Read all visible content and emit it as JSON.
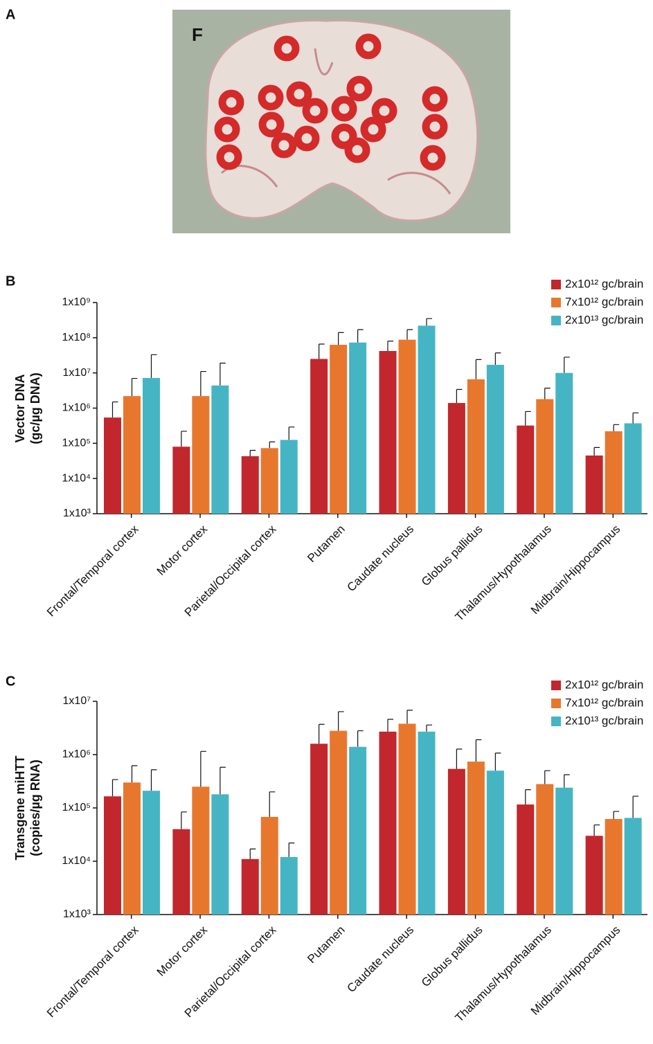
{
  "panel_labels": [
    "A",
    "B",
    "C"
  ],
  "photo_label": "F",
  "chart_data": [
    {
      "type": "bar",
      "log_scale": true,
      "ylabel": [
        "Vector DNA",
        "(gc/µg DNA)"
      ],
      "categories": [
        "Frontal/Temporal cortex",
        "Motor cortex",
        "Parietal/Occipital cortex",
        "Putamen",
        "Caudate nucleus",
        "Globus pallidus",
        "Thalamus/Hypothalamus",
        "Midbrain/Hippocampus"
      ],
      "ylim": [
        1000,
        1000000000
      ],
      "yticks": [
        {
          "value": 1000,
          "label": "1x10³"
        },
        {
          "value": 10000,
          "label": "1x10⁴"
        },
        {
          "value": 100000,
          "label": "1x10⁵"
        },
        {
          "value": 1000000,
          "label": "1x10⁶"
        },
        {
          "value": 10000000,
          "label": "1x10⁷"
        },
        {
          "value": 100000000,
          "label": "1x10⁸"
        },
        {
          "value": 1000000000,
          "label": "1x10⁹"
        }
      ],
      "legend": "top-right",
      "series": [
        {
          "name": "2x10¹² gc/brain",
          "color": "#c1272d",
          "values": [
            540000,
            80000,
            43000,
            25000000,
            42000000,
            1400000,
            320000,
            45000
          ],
          "errors": [
            960000,
            140000,
            20000,
            41000000,
            38000000,
            2000000,
            480000,
            31000
          ]
        },
        {
          "name": "7x10¹² gc/brain",
          "color": "#e8772e",
          "values": [
            2200000,
            2200000,
            73000,
            63000000,
            88000000,
            6600000,
            1800000,
            220000
          ],
          "errors": [
            4800000,
            8800000,
            37000,
            77000000,
            82000000,
            17400000,
            1900000,
            120000
          ]
        },
        {
          "name": "2x10¹³ gc/brain",
          "color": "#45b5c4",
          "values": [
            7200000,
            4400000,
            125000,
            73000000,
            220000000,
            17000000,
            10000000,
            370000
          ],
          "errors": [
            25800000,
            14600000,
            165000,
            97000000,
            130000000,
            20000000,
            18000000,
            360000
          ]
        }
      ]
    },
    {
      "type": "bar",
      "log_scale": true,
      "ylabel": [
        "Transgene miHTT",
        "(copies/µg RNA)"
      ],
      "categories": [
        "Frontal/Temporal cortex",
        "Motor cortex",
        "Parietal/Occipital cortex",
        "Putamen",
        "Caudate nucleus",
        "Globus pallidus",
        "Thalamus/Hypothalamus",
        "Midbrain/Hippocampus"
      ],
      "ylim": [
        1000,
        10000000
      ],
      "yticks": [
        {
          "value": 1000,
          "label": "1x10³"
        },
        {
          "value": 10000,
          "label": "1x10⁴"
        },
        {
          "value": 100000,
          "label": "1x10⁵"
        },
        {
          "value": 1000000,
          "label": "1x10⁶"
        },
        {
          "value": 10000000,
          "label": "1x10⁷"
        }
      ],
      "legend": "top-right",
      "series": [
        {
          "name": "2x10¹² gc/brain",
          "color": "#c1272d",
          "values": [
            165000,
            40000,
            11000,
            1600000,
            2700000,
            540000,
            116000,
            30000
          ],
          "errors": [
            175000,
            44000,
            6000,
            2100000,
            1900000,
            730000,
            104000,
            18000
          ]
        },
        {
          "name": "7x10¹² gc/brain",
          "color": "#e8772e",
          "values": [
            300000,
            250000,
            68000,
            2800000,
            3800000,
            740000,
            280000,
            62000
          ],
          "errors": [
            320000,
            900000,
            132000,
            3600000,
            3000000,
            1160000,
            220000,
            24000
          ]
        },
        {
          "name": "2x10¹³ gc/brain",
          "color": "#45b5c4",
          "values": [
            210000,
            180000,
            12000,
            1400000,
            2700000,
            500000,
            240000,
            65000
          ],
          "errors": [
            310000,
            400000,
            10000,
            1400000,
            900000,
            570000,
            180000,
            101000
          ]
        }
      ]
    }
  ]
}
